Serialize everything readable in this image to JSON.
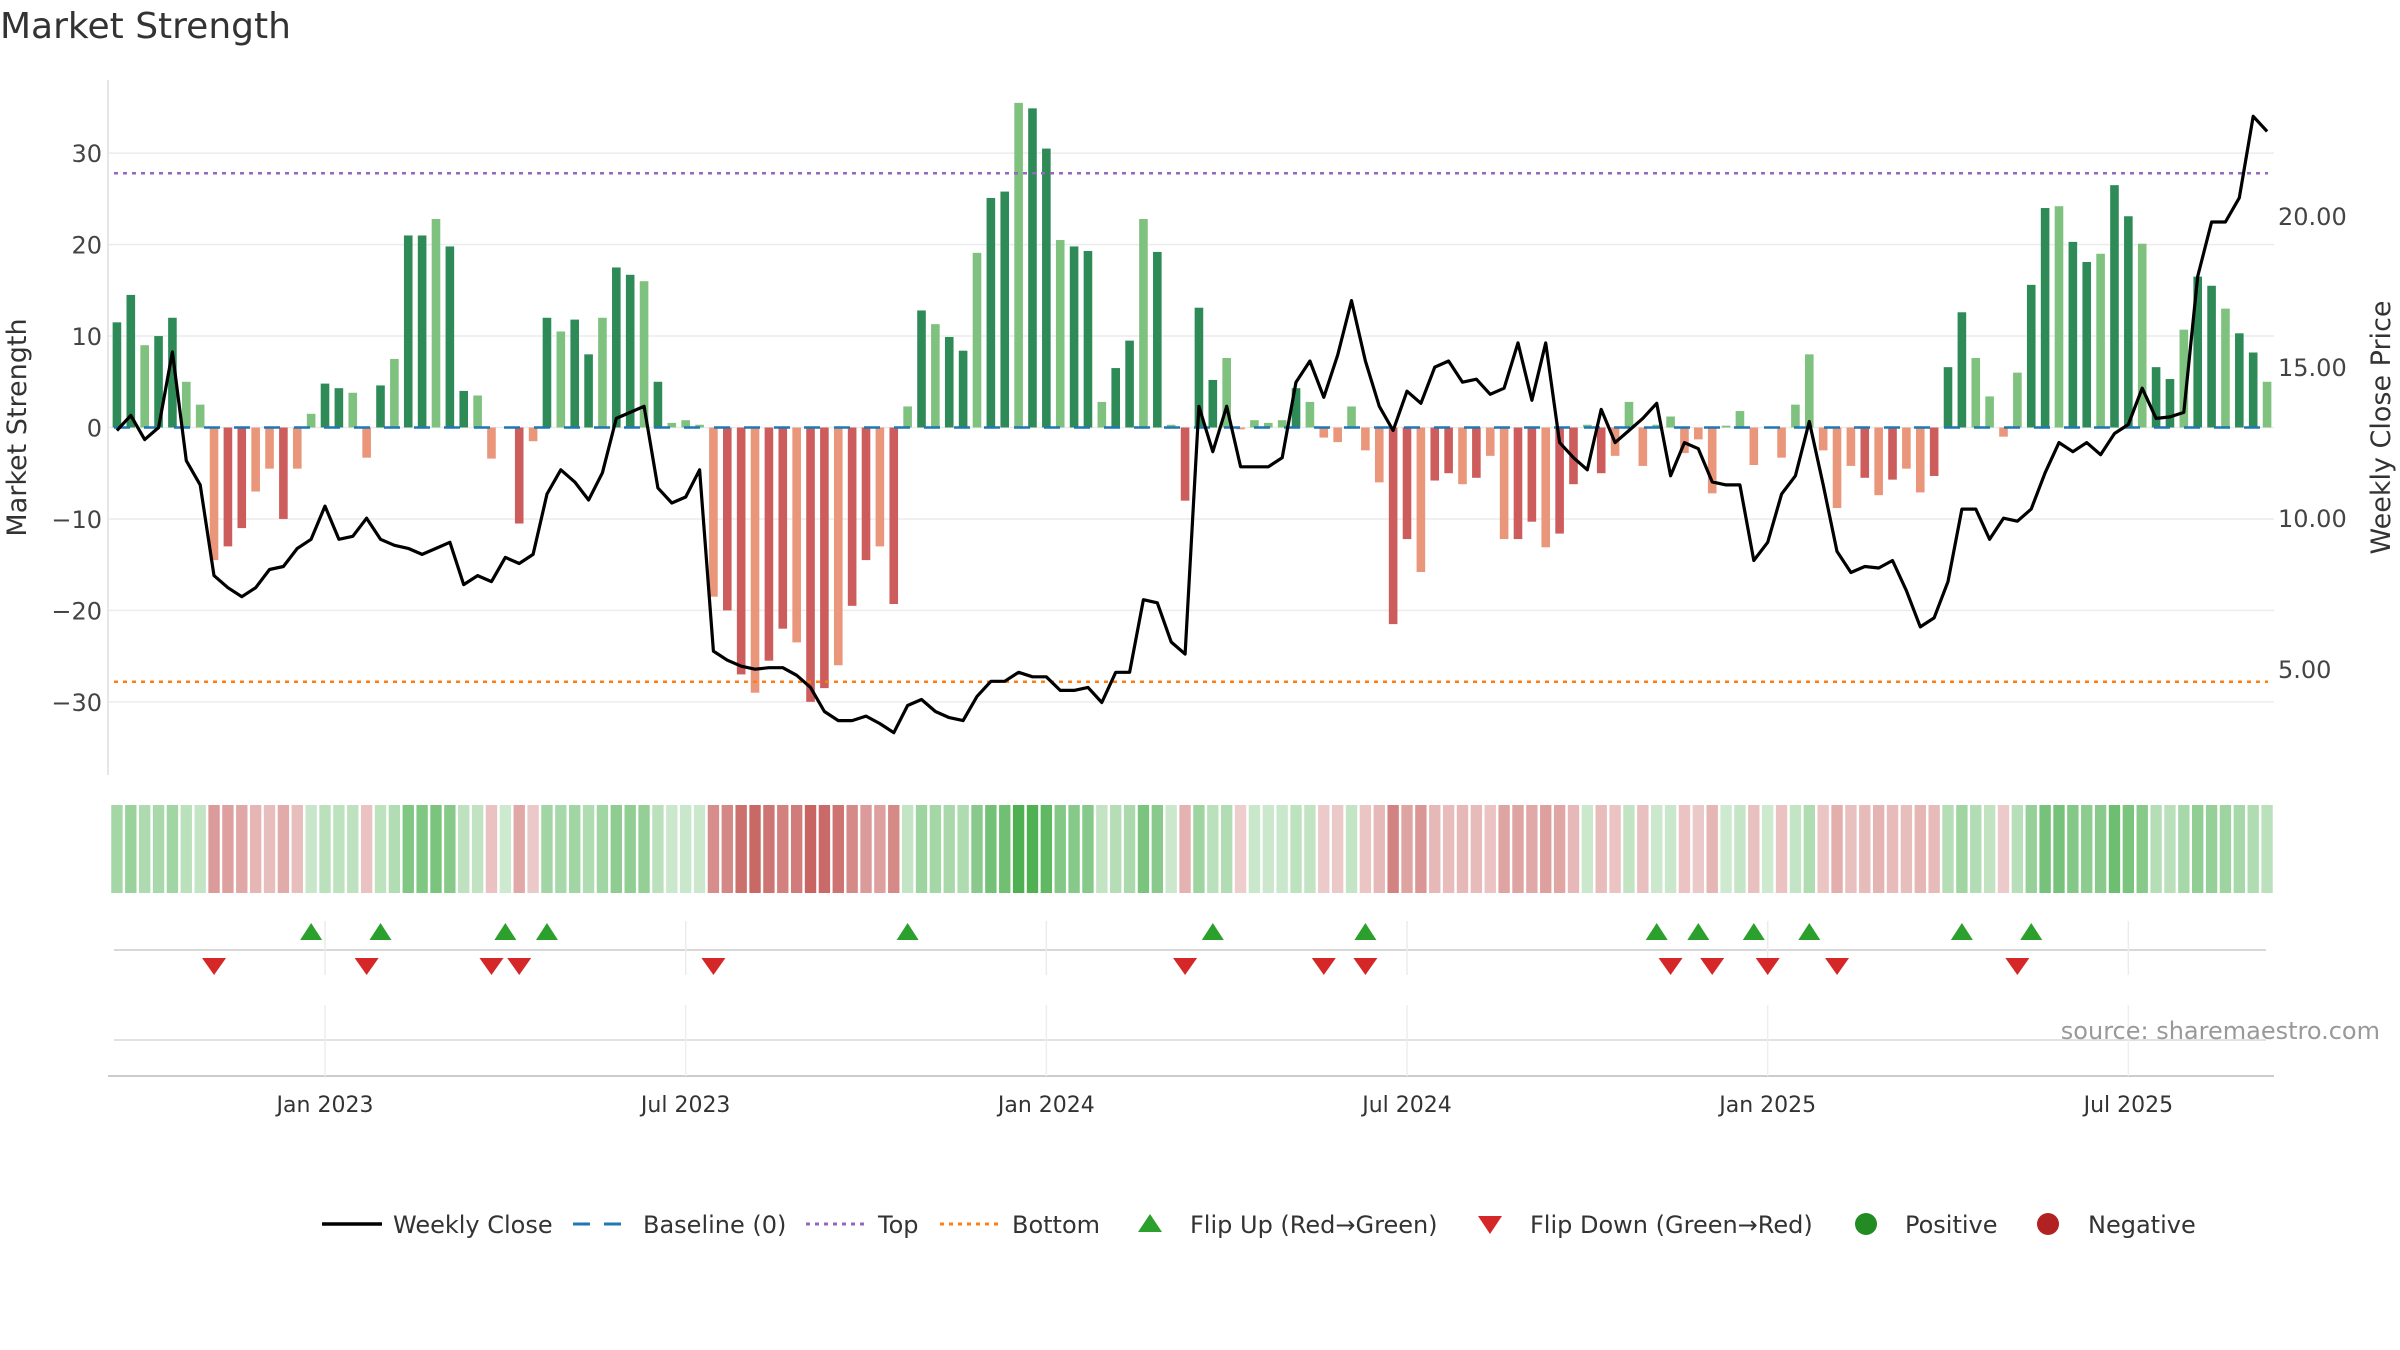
{
  "title": "Market Strength",
  "source": "source: sharemaestro.com",
  "colors": {
    "strong_green": "#2e8b57",
    "light_green": "#7fc17f",
    "strong_red": "#cd5c5c",
    "light_red": "#e9967a",
    "price_line": "#000000",
    "baseline": "#1f77b4",
    "top_line": "#9467bd",
    "bottom_line": "#ff7f0e",
    "flip_up": "#2ca02c",
    "flip_down": "#d62728",
    "positive": "#228b22",
    "negative": "#b22222"
  },
  "chart_data": {
    "type": "bar",
    "title": "Market Strength",
    "ylabel_left": "Market Strength",
    "ylabel_right": "Weekly Close Price",
    "left_ticks": [
      30,
      20,
      10,
      0,
      -10,
      -20,
      -30
    ],
    "left_tick_labels": [
      "30",
      "20",
      "10",
      "0",
      "−10",
      "−20",
      "−30"
    ],
    "ylim_left": [
      -38,
      38
    ],
    "right_ticks": [
      20,
      15,
      10,
      5
    ],
    "right_tick_labels": [
      "20.00",
      "15.00",
      "10.00",
      "5.00"
    ],
    "ylim_right": [
      1.5,
      24.5
    ],
    "top_threshold": 27.8,
    "bottom_threshold": -27.8,
    "x_tick_labels": [
      "Jan 2023",
      "Jul 2023",
      "Jan 2024",
      "Jul 2024",
      "Jan 2025",
      "Jul 2025"
    ],
    "x_tick_week_index": [
      15,
      41,
      67,
      93,
      119,
      145
    ],
    "strength": [
      11.5,
      14.5,
      9,
      10,
      12,
      5,
      2.5,
      -14.5,
      -13,
      -11,
      -7,
      -4.5,
      -10,
      -4.5,
      1.5,
      4.8,
      4.3,
      3.8,
      -3.3,
      4.6,
      7.5,
      21,
      21,
      22.8,
      19.8,
      4,
      3.5,
      -3.4,
      0,
      -10.5,
      -1.5,
      12,
      10.5,
      11.8,
      8,
      12,
      17.5,
      16.7,
      16,
      5,
      0.5,
      0.8,
      0.3,
      -18.5,
      -20,
      -27,
      -29,
      -25.5,
      -22,
      -23.5,
      -30,
      -28.5,
      -26,
      -19.5,
      -14.5,
      -13,
      -19.3,
      2.3,
      12.8,
      11.3,
      9.9,
      8.4,
      19.1,
      25.1,
      25.8,
      35.5,
      34.9,
      30.5,
      20.5,
      19.8,
      19.3,
      2.8,
      6.5,
      9.5,
      22.8,
      19.2,
      0.3,
      -8,
      13.1,
      5.2,
      7.6,
      -0.2,
      0.8,
      0.5,
      0.8,
      4.3,
      2.8,
      -1.1,
      -1.6,
      2.3,
      -2.5,
      -6,
      -21.5,
      -12.2,
      -15.8,
      -5.8,
      -5,
      -6.2,
      -5.5,
      -3.1,
      -12.2,
      -12.2,
      -10.3,
      -13.1,
      -11.6,
      -6.2,
      0.3,
      -5,
      -3.1,
      2.8,
      -4.2,
      0.3,
      1.2,
      -2.8,
      -1.3,
      -7.2,
      0.2,
      1.8,
      -4.1,
      0.1,
      -3.3,
      2.5,
      8,
      -2.5,
      -8.8,
      -4.2,
      -5.5,
      -7.4,
      -5.7,
      -4.5,
      -7.1,
      -5.3,
      6.6,
      12.6,
      7.6,
      3.4,
      -1,
      6,
      15.6,
      24,
      24.2,
      20.3,
      18.1,
      19,
      26.5,
      23.1,
      20.1,
      6.6,
      5.3,
      10.7,
      16.5,
      15.5,
      13,
      10.3,
      8.2,
      5
    ],
    "weekly_close": [
      12.9,
      13.4,
      12.6,
      13.0,
      15.5,
      11.9,
      11.1,
      8.1,
      7.7,
      7.4,
      7.7,
      8.3,
      8.4,
      9.0,
      9.3,
      10.4,
      9.3,
      9.4,
      10.0,
      9.3,
      9.1,
      9.0,
      8.8,
      9.0,
      9.2,
      7.8,
      8.1,
      7.9,
      8.7,
      8.5,
      8.8,
      10.8,
      11.6,
      11.2,
      10.6,
      11.5,
      13.3,
      13.5,
      13.7,
      11.0,
      10.5,
      10.7,
      11.6,
      5.6,
      5.3,
      5.1,
      5.0,
      5.05,
      5.05,
      4.8,
      4.4,
      3.6,
      3.3,
      3.3,
      3.45,
      3.2,
      2.9,
      3.8,
      4.0,
      3.6,
      3.4,
      3.3,
      4.1,
      4.6,
      4.6,
      4.9,
      4.75,
      4.75,
      4.3,
      4.3,
      4.4,
      3.9,
      4.9,
      4.9,
      7.3,
      7.2,
      5.9,
      5.5,
      13.7,
      12.2,
      13.7,
      11.7,
      11.7,
      11.7,
      12.0,
      14.5,
      15.2,
      14.0,
      15.4,
      17.2,
      15.2,
      13.7,
      12.9,
      14.2,
      13.8,
      15.0,
      15.2,
      14.5,
      14.6,
      14.1,
      14.3,
      15.8,
      13.9,
      15.8,
      12.5,
      12.0,
      11.6,
      13.6,
      12.5,
      12.9,
      13.3,
      13.8,
      11.4,
      12.5,
      12.3,
      11.2,
      11.1,
      11.1,
      8.6,
      9.2,
      10.8,
      11.4,
      13.2,
      11.1,
      8.9,
      8.2,
      8.4,
      8.35,
      8.6,
      7.6,
      6.4,
      6.7,
      7.9,
      10.3,
      10.3,
      9.3,
      10.0,
      9.9,
      10.3,
      11.5,
      12.5,
      12.2,
      12.5,
      12.1,
      12.8,
      13.1,
      14.3,
      13.3,
      13.35,
      13.5,
      18.0,
      19.8,
      19.8,
      20.6,
      23.3,
      22.8
    ],
    "band_days": [
      15,
      22,
      10,
      5,
      7,
      9,
      6,
      15,
      12,
      13
    ],
    "flip_up_week_index": [
      14,
      19,
      28,
      31,
      57,
      79,
      90,
      111,
      114,
      118,
      122,
      133,
      138
    ],
    "flip_down_week_index": [
      7,
      18,
      27,
      29,
      43,
      77,
      87,
      90,
      112,
      115,
      119,
      124,
      137
    ],
    "legend": [
      "Weekly Close",
      "Baseline (0)",
      "Top",
      "Bottom",
      "Flip Up (Red→Green)",
      "Flip Down (Green→Red)",
      "Positive",
      "Negative"
    ]
  }
}
